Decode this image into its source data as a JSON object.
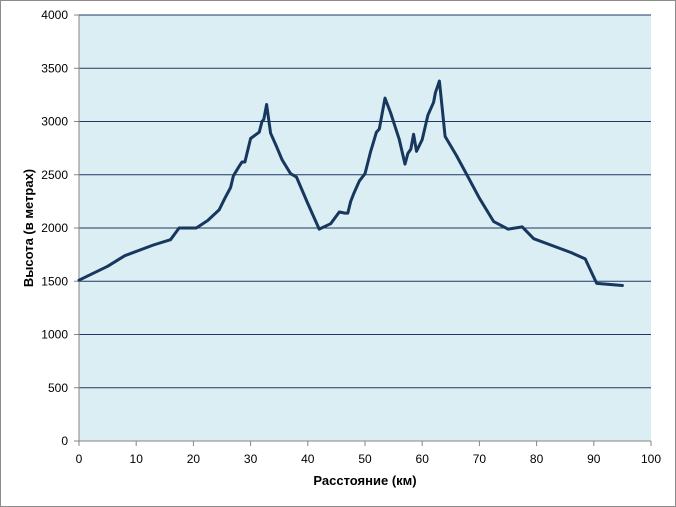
{
  "chart_data": {
    "type": "line",
    "title": "",
    "xlabel": "Расстояние (км)",
    "ylabel": "Высота (в метрах)",
    "xlim": [
      0,
      100
    ],
    "ylim": [
      0,
      4000
    ],
    "xticks": [
      0,
      10,
      20,
      30,
      40,
      50,
      60,
      70,
      80,
      90,
      100
    ],
    "yticks": [
      0,
      500,
      1000,
      1500,
      2000,
      2500,
      3000,
      3500,
      4000
    ],
    "grid": "horizontal",
    "legend": "none",
    "colors": {
      "plot_background": "#dbeef4",
      "line": "#17375e",
      "gridline": "#1f3864",
      "axis": "#868686"
    },
    "series": [
      {
        "x": [
          0,
          5,
          8,
          13,
          16,
          17.5,
          20.5,
          22.5,
          24.5,
          25.5,
          26.5,
          27,
          28,
          28.5,
          29,
          30,
          31,
          31.5,
          32,
          32.3,
          32.8,
          33.5,
          34.5,
          35.5,
          37,
          38,
          40,
          42,
          44,
          45.5,
          46.5,
          47,
          47.5,
          48,
          49,
          50,
          51,
          51.5,
          52,
          52.5,
          53.5,
          54.5,
          56,
          57,
          57.5,
          58,
          58.5,
          59,
          60,
          61,
          62,
          62.3,
          63,
          64,
          66,
          68,
          70,
          72.5,
          75,
          77.5,
          79.5,
          82,
          86,
          88.5,
          90.5,
          95
        ],
        "y": [
          1510,
          1640,
          1740,
          1840,
          1890,
          2000,
          2000,
          2070,
          2170,
          2280,
          2380,
          2490,
          2580,
          2620,
          2620,
          2840,
          2880,
          2900,
          3000,
          3020,
          3160,
          2890,
          2770,
          2640,
          2510,
          2480,
          2230,
          1990,
          2040,
          2150,
          2140,
          2140,
          2250,
          2320,
          2440,
          2510,
          2720,
          2810,
          2900,
          2930,
          3220,
          3080,
          2830,
          2600,
          2700,
          2740,
          2880,
          2720,
          2830,
          3060,
          3180,
          3270,
          3380,
          2860,
          2680,
          2480,
          2280,
          2060,
          1990,
          2010,
          1900,
          1850,
          1770,
          1710,
          1480,
          1460
        ]
      }
    ]
  }
}
